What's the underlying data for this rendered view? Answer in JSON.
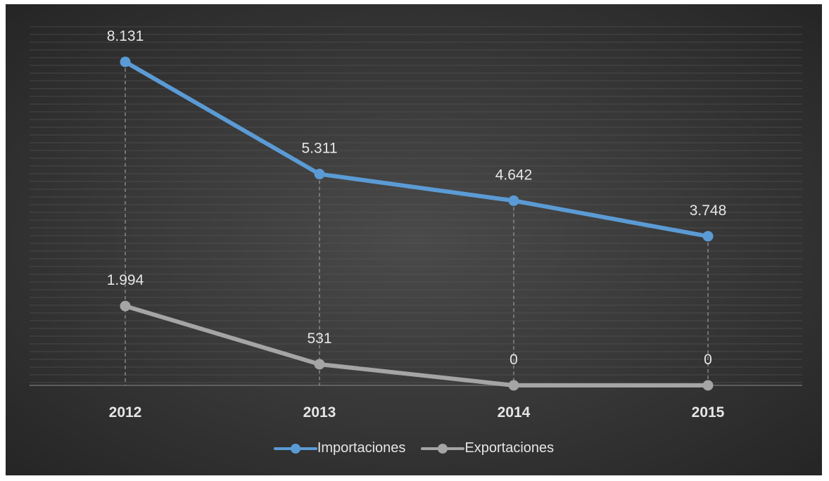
{
  "chart_data": {
    "type": "line",
    "categories": [
      "2012",
      "2013",
      "2014",
      "2015"
    ],
    "series": [
      {
        "name": "Importaciones",
        "values": [
          8131,
          5311,
          4642,
          3748
        ],
        "labels": [
          "8.131",
          "5.311",
          "4.642",
          "3.748"
        ],
        "color": "#5b9bd5"
      },
      {
        "name": "Exportaciones",
        "values": [
          1994,
          531,
          0,
          0
        ],
        "labels": [
          "1.994",
          "531",
          "0",
          "0"
        ],
        "color": "#a5a5a5"
      }
    ],
    "ylim": [
      0,
      9000
    ],
    "grid": true,
    "drop_lines": true,
    "legend_position": "bottom",
    "background": "#3a3a3a",
    "text_color": "#e6e6e6"
  }
}
